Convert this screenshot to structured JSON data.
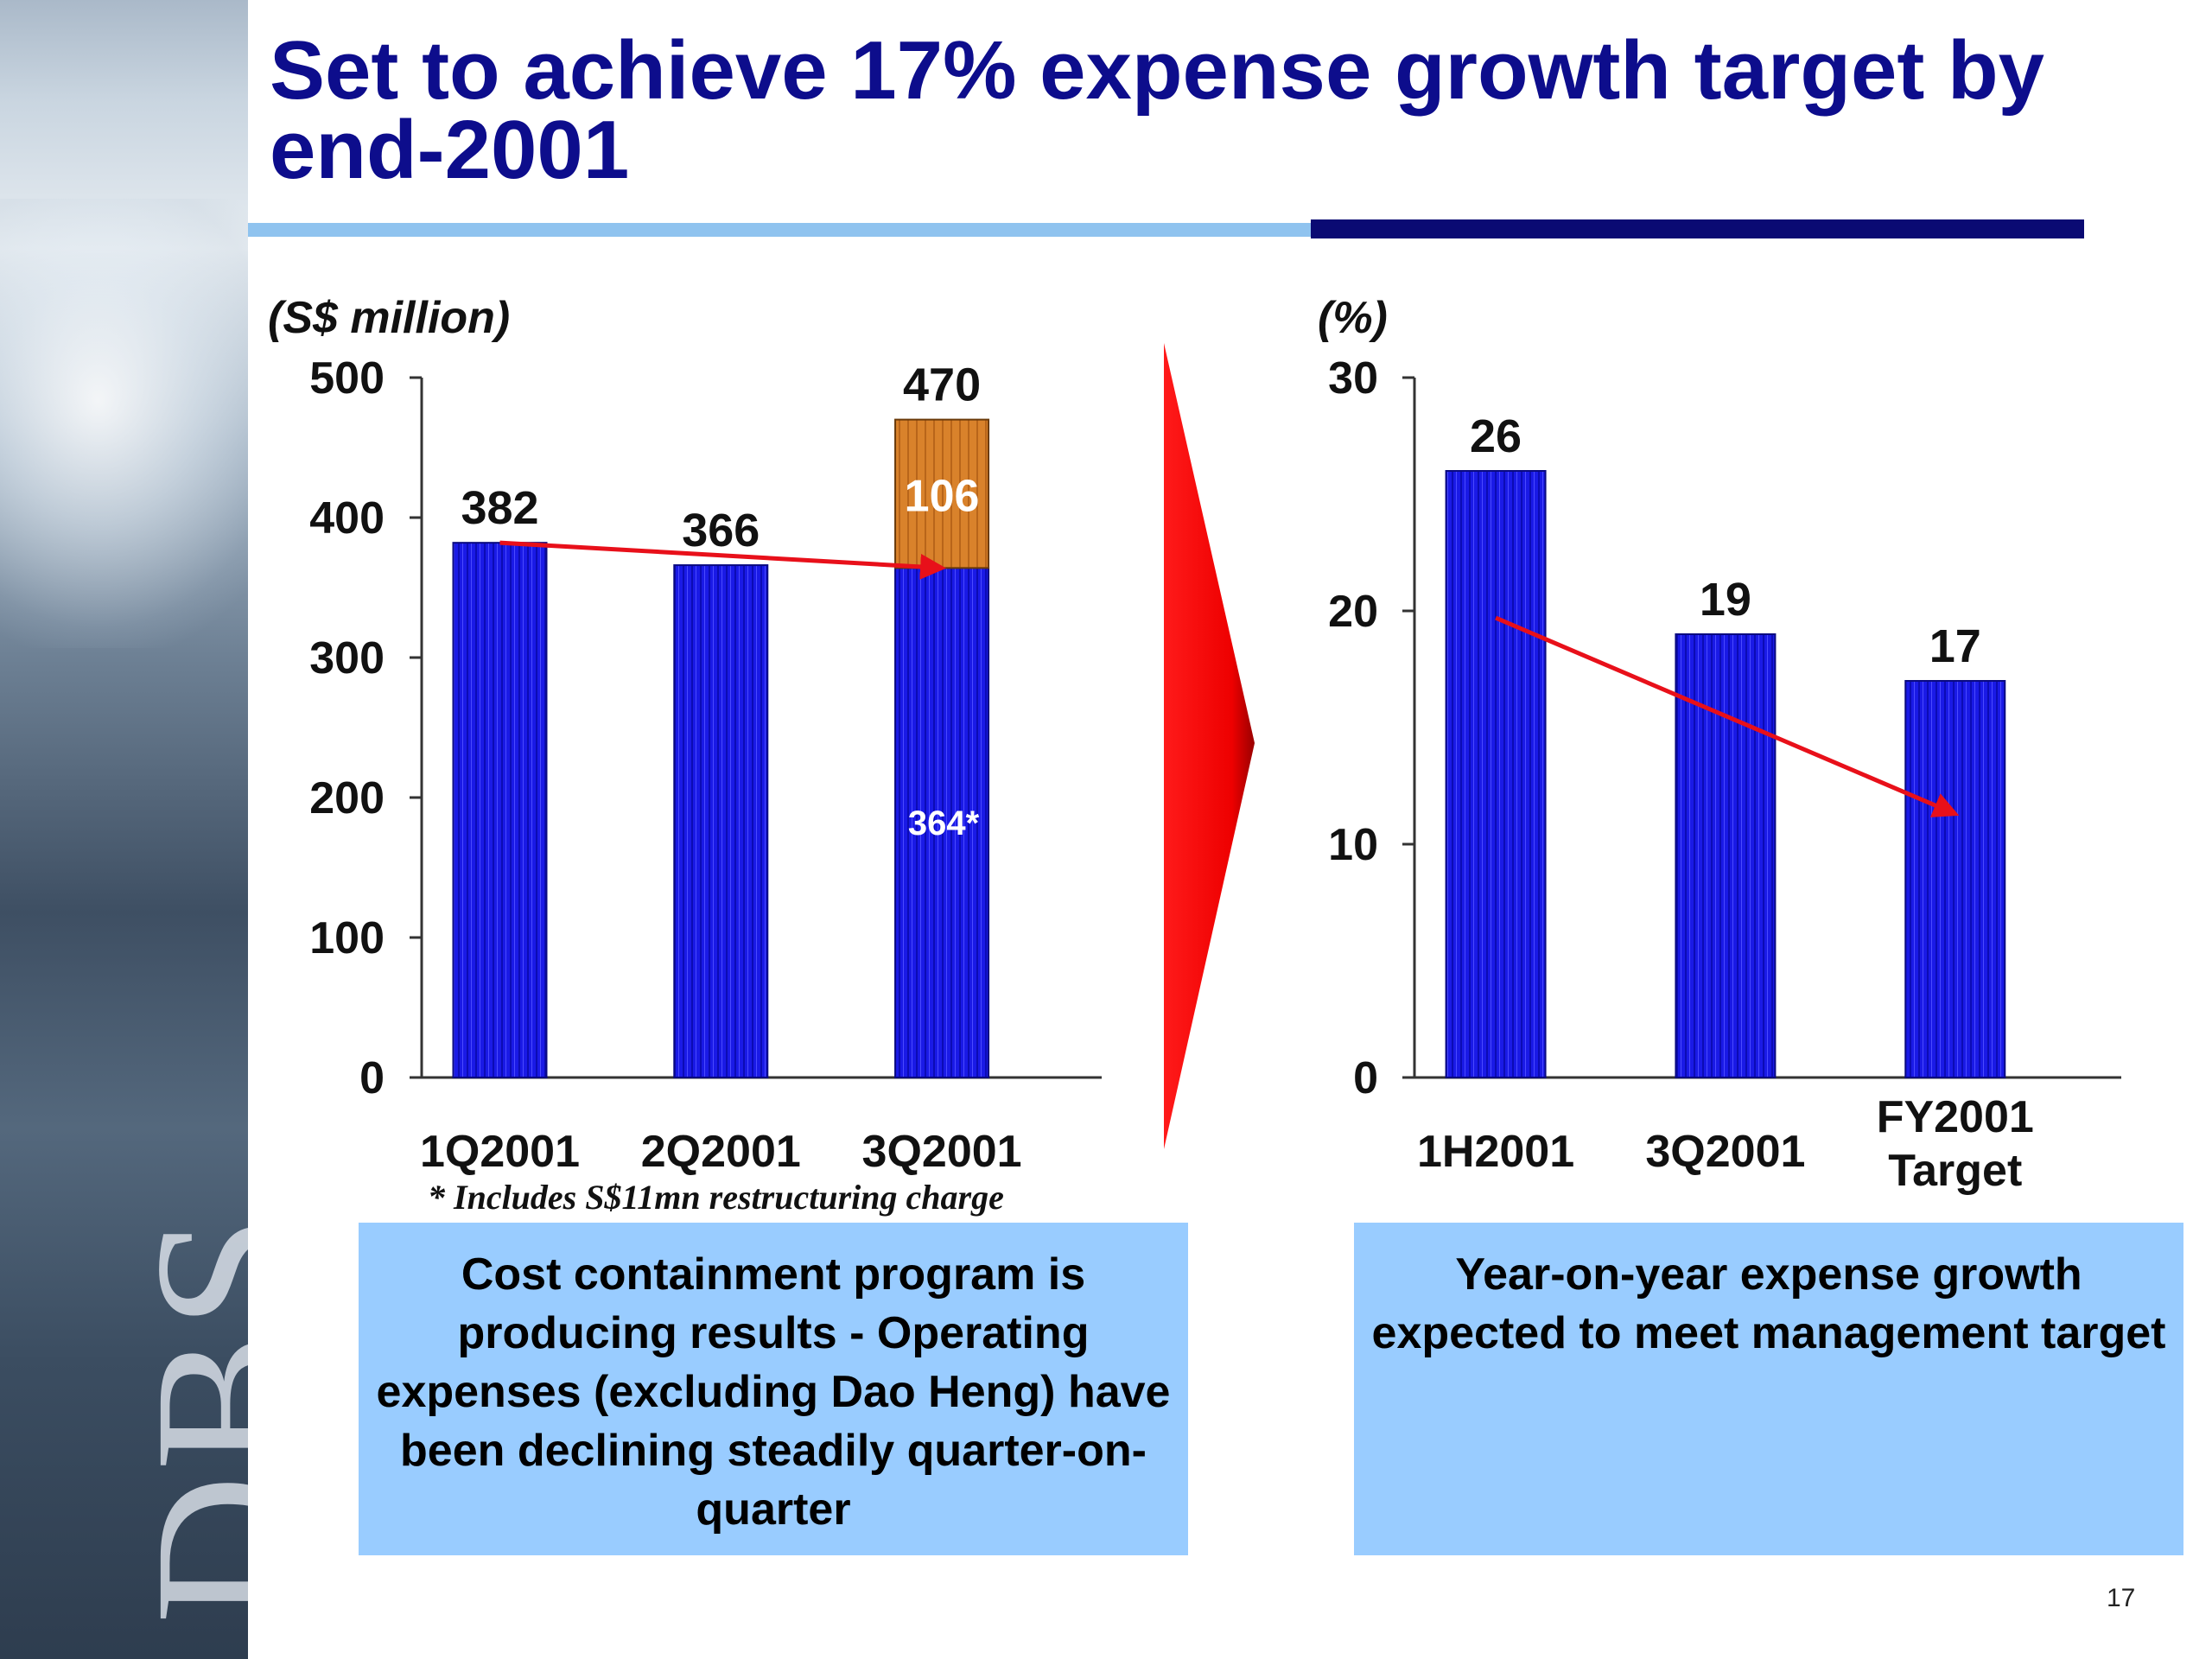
{
  "slide": {
    "title": "Set to achieve 17% expense growth target by end-2001",
    "footnote": "* Includes S$11mn restructuring charge",
    "left_caption": "Cost containment program is producing results - Operating expenses (excluding Dao Heng) have been declining steadily quarter-on-quarter",
    "right_caption": "Year-on-year expense growth expected to meet management target",
    "page_number": "17",
    "logo_text": "DBS",
    "colors": {
      "title": "#0d0d8c",
      "bar": "#1a1ae6",
      "bar_top": "#d9822b",
      "trend": "#e8101a",
      "caption_box": "#99ccff"
    }
  },
  "chart_data": [
    {
      "type": "bar",
      "unit_label": "(S$ million)",
      "categories": [
        "1Q2001",
        "2Q2001",
        "3Q2001"
      ],
      "series": [
        {
          "values": [
            382,
            366,
            364
          ]
        },
        {
          "values": [
            0,
            0,
            106
          ]
        }
      ],
      "total_labels": [
        "382",
        "366",
        "470"
      ],
      "segment_labels": [
        "",
        "",
        "364*"
      ],
      "top_segment_labels": [
        "",
        "",
        "106"
      ],
      "ylim": [
        0,
        500
      ],
      "yticks": [
        0,
        100,
        200,
        300,
        400,
        500
      ],
      "trend": {
        "from_category": "1Q2001",
        "to_category": "3Q2001",
        "from_value": 382,
        "to_value": 364
      }
    },
    {
      "type": "bar",
      "unit_label": "(%)",
      "categories": [
        "1H2001",
        "3Q2001",
        "FY2001 Target"
      ],
      "series": [
        {
          "values": [
            26,
            19,
            17
          ]
        }
      ],
      "value_labels": [
        "26",
        "19",
        "17"
      ],
      "ylim": [
        0,
        30
      ],
      "yticks": [
        0,
        10,
        20,
        30
      ],
      "trend": {
        "from_category": "1H2001",
        "to_category": "FY2001 Target",
        "from_value": 19.7,
        "to_value": 11.3
      }
    }
  ]
}
